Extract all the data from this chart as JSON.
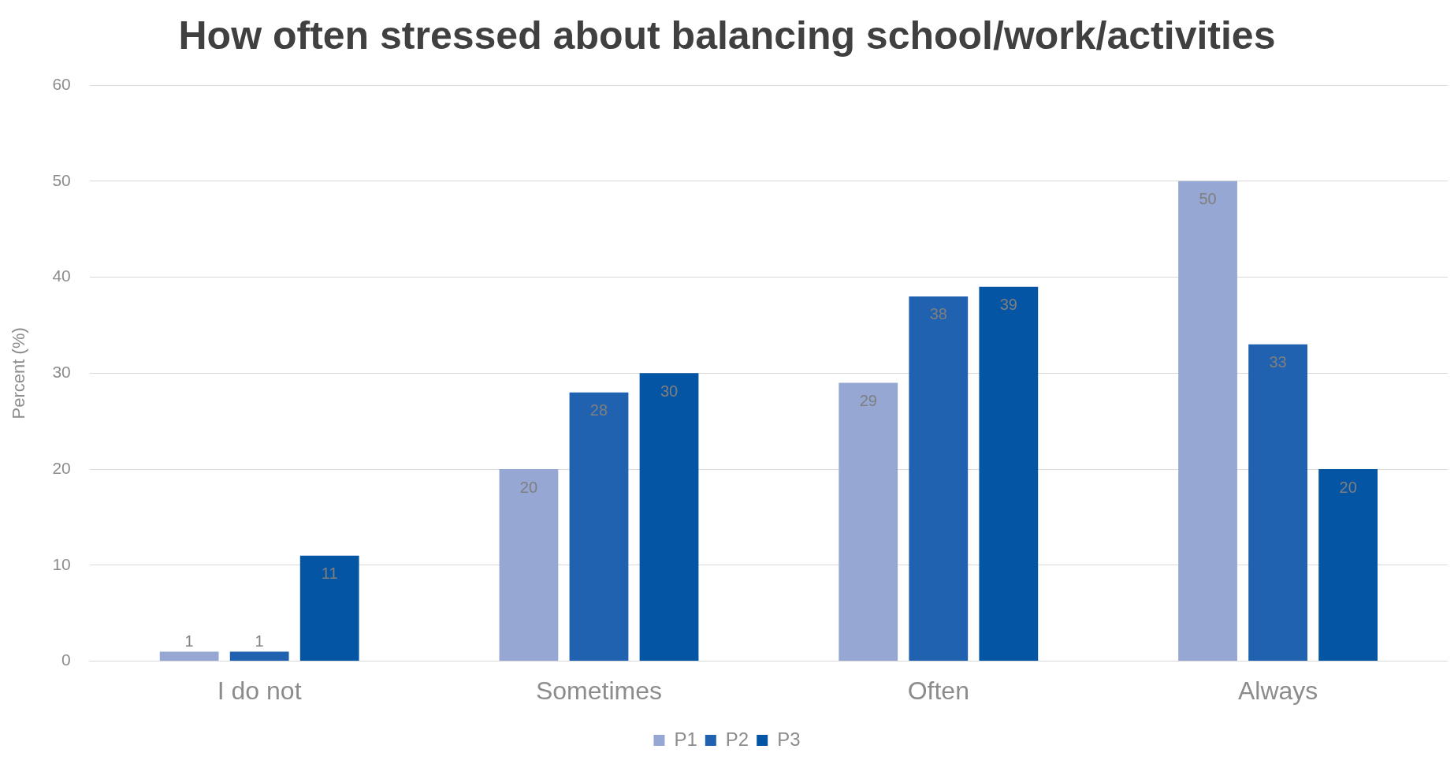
{
  "chart_data": {
    "type": "bar",
    "title": "How often stressed about balancing school/work/activities",
    "ylabel": "Percent (%)",
    "categories": [
      "I do not",
      "Sometimes",
      "Often",
      "Always"
    ],
    "series": [
      {
        "name": "P1",
        "color": "#95a7d2",
        "values": [
          1,
          20,
          29,
          50
        ]
      },
      {
        "name": "P2",
        "color": "#2062b0",
        "values": [
          1,
          28,
          38,
          33
        ]
      },
      {
        "name": "P3",
        "color": "#0555a5",
        "values": [
          11,
          30,
          39,
          20
        ]
      }
    ],
    "ylim": [
      0,
      60
    ],
    "yticks": [
      0,
      10,
      20,
      30,
      40,
      50,
      60
    ],
    "grid": "y",
    "legend": "bottom",
    "data_labels": true
  }
}
